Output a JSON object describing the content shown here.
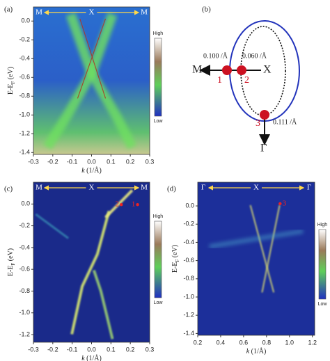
{
  "chart_data": [
    {
      "type": "heatmap",
      "panel_label": "(a)",
      "path_labels": [
        "M",
        "X",
        "M"
      ],
      "xlabel": {
        "var": "k",
        "unit": "(1/Å)"
      },
      "ylabel": {
        "main": "E-E",
        "sub": "F",
        "unit": "(eV)"
      },
      "colorbar": {
        "high": "High",
        "low": "Low"
      },
      "xlim": [
        -0.3,
        0.3
      ],
      "ylim": [
        -1.42,
        0.15
      ],
      "xticks": [
        -0.3,
        -0.2,
        -0.1,
        {
          "value": 0,
          "label": "0.0"
        },
        0.1,
        0.2,
        0.3
      ],
      "yticks": [
        {
          "value": 0,
          "label": "0.0"
        },
        -0.2,
        -0.4,
        -0.6,
        -0.8,
        {
          "value": -1,
          "label": "-1.0"
        },
        -1.2,
        -1.4
      ]
    },
    {
      "type": "heatmap",
      "panel_label": "(c)",
      "path_labels": [
        "M",
        "X",
        "M"
      ],
      "xlabel": {
        "var": "k",
        "unit": "(1/Å)"
      },
      "ylabel": {
        "main": "E-E",
        "sub": "F",
        "unit": "(eV)"
      },
      "colorbar": {
        "high": "High",
        "low": "Low"
      },
      "annotations": [
        "2",
        "1"
      ],
      "xlim": [
        -0.3,
        0.3
      ],
      "ylim": [
        -1.27,
        0.2
      ],
      "xticks": [
        -0.3,
        -0.2,
        -0.1,
        {
          "value": 0,
          "label": "0.0"
        },
        0.1,
        0.2,
        0.3
      ],
      "yticks": [
        {
          "value": 0,
          "label": "0.0"
        },
        -0.2,
        -0.4,
        -0.6,
        -0.8,
        {
          "value": -1,
          "label": "-1.0"
        },
        -1.2
      ]
    },
    {
      "type": "heatmap",
      "panel_label": "(d)",
      "path_labels": [
        "Γ",
        "X",
        "Γ"
      ],
      "xlabel": {
        "var": "k",
        "unit": "(1/Å)"
      },
      "ylabel": {
        "main": "E-E",
        "sub": "F",
        "unit": "(eV)"
      },
      "colorbar": {
        "high": "High",
        "low": "Low"
      },
      "annotations": [
        "3"
      ],
      "xlim": [
        0.2,
        1.22
      ],
      "ylim": [
        -1.42,
        0.26
      ],
      "xticks": [
        0.2,
        0.4,
        0.6,
        0.8,
        {
          "value": 1,
          "label": "1.0"
        },
        1.2
      ],
      "yticks": [
        {
          "value": 0,
          "label": "0.0"
        },
        -0.2,
        -0.4,
        -0.6,
        -0.8,
        {
          "value": -1,
          "label": "-1.0"
        },
        -1.2,
        -1.4
      ]
    }
  ],
  "diagram": {
    "panel_label": "(b)",
    "left_point": "M",
    "center_point": "X",
    "bottom_point": "Γ",
    "markers": [
      "1",
      "2",
      "3"
    ],
    "distances": [
      "0.100 /Å",
      "0.060 /Å",
      "0.111 /Å"
    ]
  }
}
